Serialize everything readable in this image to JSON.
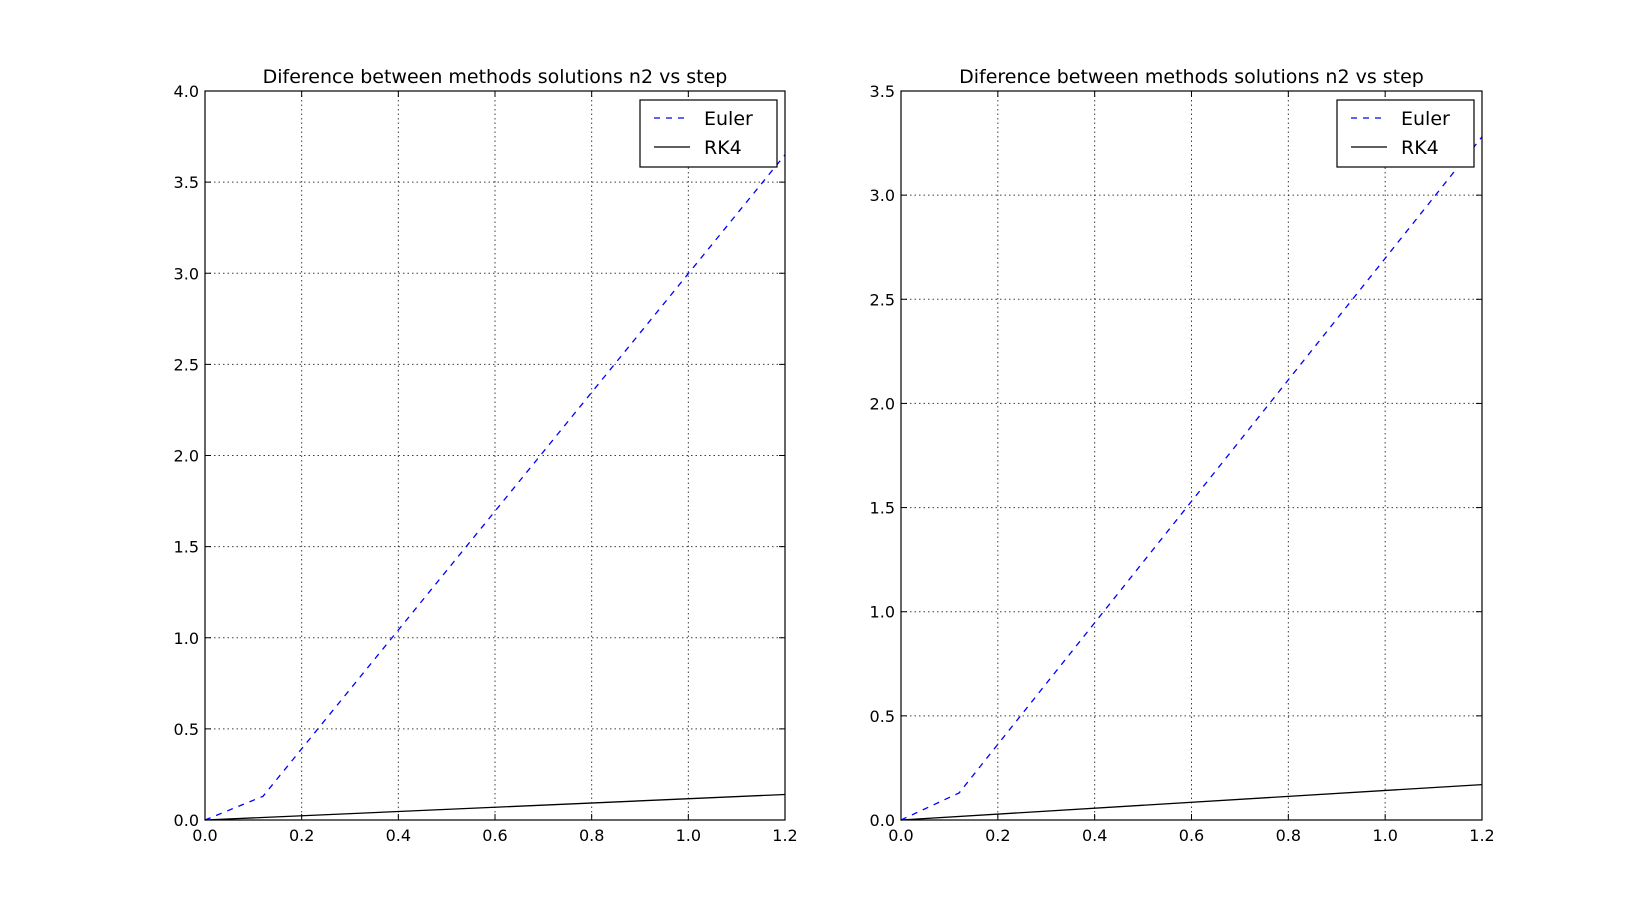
{
  "chart_data": [
    {
      "type": "line",
      "title": "Diference between methods solutions n2 vs step",
      "xlabel": "",
      "ylabel": "",
      "xlim": [
        0.0,
        1.2
      ],
      "ylim": [
        0.0,
        4.0
      ],
      "xticks": [
        "0.0",
        "0.2",
        "0.4",
        "0.6",
        "0.8",
        "1.0",
        "1.2"
      ],
      "yticks": [
        "0.0",
        "0.5",
        "1.0",
        "1.5",
        "2.0",
        "2.5",
        "3.0",
        "3.5",
        "4.0"
      ],
      "grid": true,
      "legend_position": "top-right",
      "series": [
        {
          "name": "Euler",
          "color": "#0000ff",
          "style": "dashed",
          "x": [
            0.0,
            0.12,
            1.2
          ],
          "y": [
            0.0,
            0.13,
            3.65
          ]
        },
        {
          "name": "RK4",
          "color": "#000000",
          "style": "solid",
          "x": [
            0.0,
            1.2
          ],
          "y": [
            0.0,
            0.14
          ]
        }
      ]
    },
    {
      "type": "line",
      "title": "Diference between methods solutions n2 vs step",
      "xlabel": "",
      "ylabel": "",
      "xlim": [
        0.0,
        1.2
      ],
      "ylim": [
        0.0,
        3.5
      ],
      "xticks": [
        "0.0",
        "0.2",
        "0.4",
        "0.6",
        "0.8",
        "1.0",
        "1.2"
      ],
      "yticks": [
        "0.0",
        "0.5",
        "1.0",
        "1.5",
        "2.0",
        "2.5",
        "3.0",
        "3.5"
      ],
      "grid": true,
      "legend_position": "top-right",
      "series": [
        {
          "name": "Euler",
          "color": "#0000ff",
          "style": "dashed",
          "x": [
            0.0,
            0.12,
            1.2
          ],
          "y": [
            0.0,
            0.13,
            3.28
          ]
        },
        {
          "name": "RK4",
          "color": "#000000",
          "style": "solid",
          "x": [
            0.0,
            1.2
          ],
          "y": [
            0.0,
            0.17
          ]
        }
      ]
    }
  ]
}
